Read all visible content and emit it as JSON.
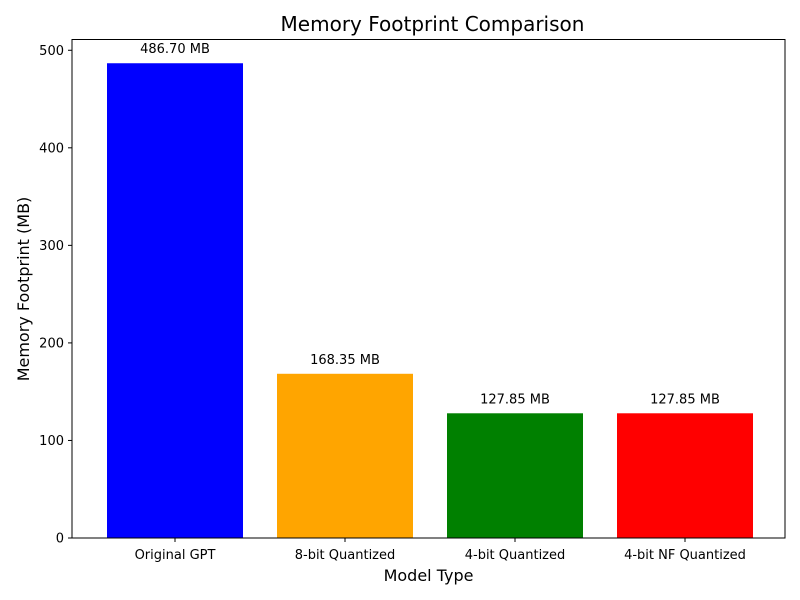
{
  "chart_data": {
    "type": "bar",
    "title": "Memory Footprint Comparison",
    "xlabel": "Model Type",
    "ylabel": "Memory Footprint (MB)",
    "categories": [
      "Original GPT",
      "8-bit Quantized",
      "4-bit Quantized",
      "4-bit NF Quantized"
    ],
    "values": [
      486.7,
      168.35,
      127.85,
      127.85
    ],
    "data_labels": [
      "486.70 MB",
      "168.35 MB",
      "127.85 MB",
      "127.85 MB"
    ],
    "colors": [
      "#0000ff",
      "#ffa500",
      "#008000",
      "#ff0000"
    ],
    "ylim": [
      0,
      511.04
    ],
    "yticks": [
      0,
      100,
      200,
      300,
      400,
      500
    ],
    "ytick_labels": [
      "0",
      "100",
      "200",
      "300",
      "400",
      "500"
    ],
    "grid": false,
    "legend": "none"
  }
}
